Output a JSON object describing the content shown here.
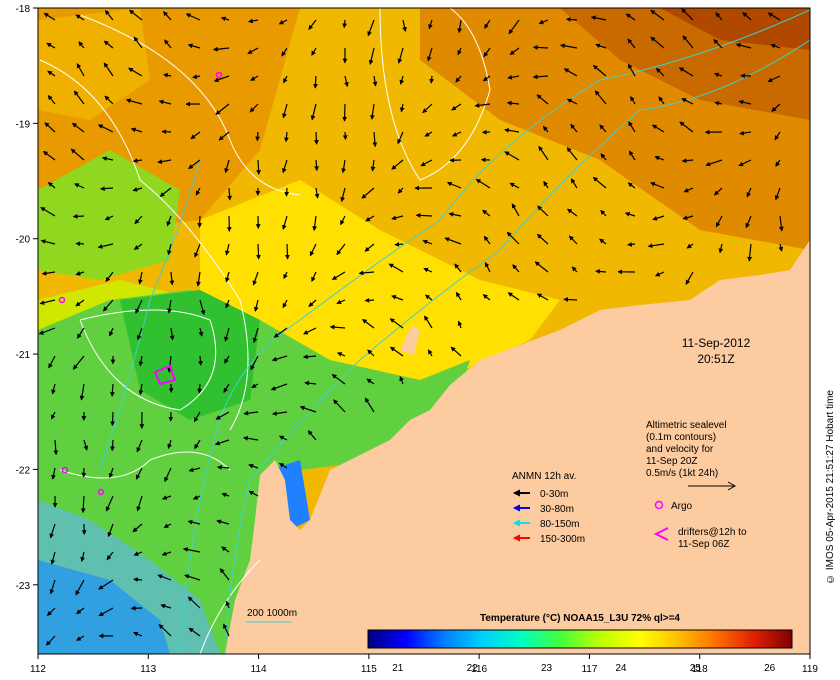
{
  "map": {
    "lon_ticks": [
      "112",
      "113",
      "114",
      "115",
      "116",
      "117",
      "118",
      "119"
    ],
    "lat_ticks": [
      "-18",
      "-19",
      "-20",
      "-21",
      "-22",
      "-23"
    ],
    "lon_range": [
      112,
      119
    ],
    "lat_range": [
      -23.6,
      -18.0
    ],
    "land_color": "#fccba0",
    "date": "11-Sep-2012",
    "time": "20:51Z"
  },
  "annotation": {
    "lines": [
      "Altimetric sealevel",
      "(0.1m contours)",
      "and velocity for",
      "11-Sep 20Z",
      "0.5m/s (1kt 24h)"
    ]
  },
  "legend": {
    "title": "ANMN 12h av.",
    "items": [
      {
        "label": "0-30m",
        "color": "#000000"
      },
      {
        "label": "30-80m",
        "color": "#0000ff"
      },
      {
        "label": "80-150m",
        "color": "#00e5e5"
      },
      {
        "label": "150-300m",
        "color": "#ff0000"
      }
    ],
    "argo_label": "Argo",
    "drifter_label_1": "drifters@12h to",
    "drifter_label_2": "11-Sep 06Z",
    "isobath_label": "200  1000m",
    "marker_color": "#ff00ff"
  },
  "colorbar": {
    "title": "Temperature (°C) NOAA15_L3U 72% ql>=4",
    "ticks": [
      "21",
      "22",
      "23",
      "24",
      "25",
      "26"
    ],
    "range": [
      20.6,
      26.3
    ],
    "colors": [
      "#00007f",
      "#0000ff",
      "#0080ff",
      "#00d0ff",
      "#00ffc0",
      "#40ff40",
      "#c0ff00",
      "#ffff00",
      "#ffc000",
      "#ff7000",
      "#e02000",
      "#7f0000"
    ]
  },
  "credit": "© IMOS 05-Apr-2015 21:51:27 Hobart time"
}
